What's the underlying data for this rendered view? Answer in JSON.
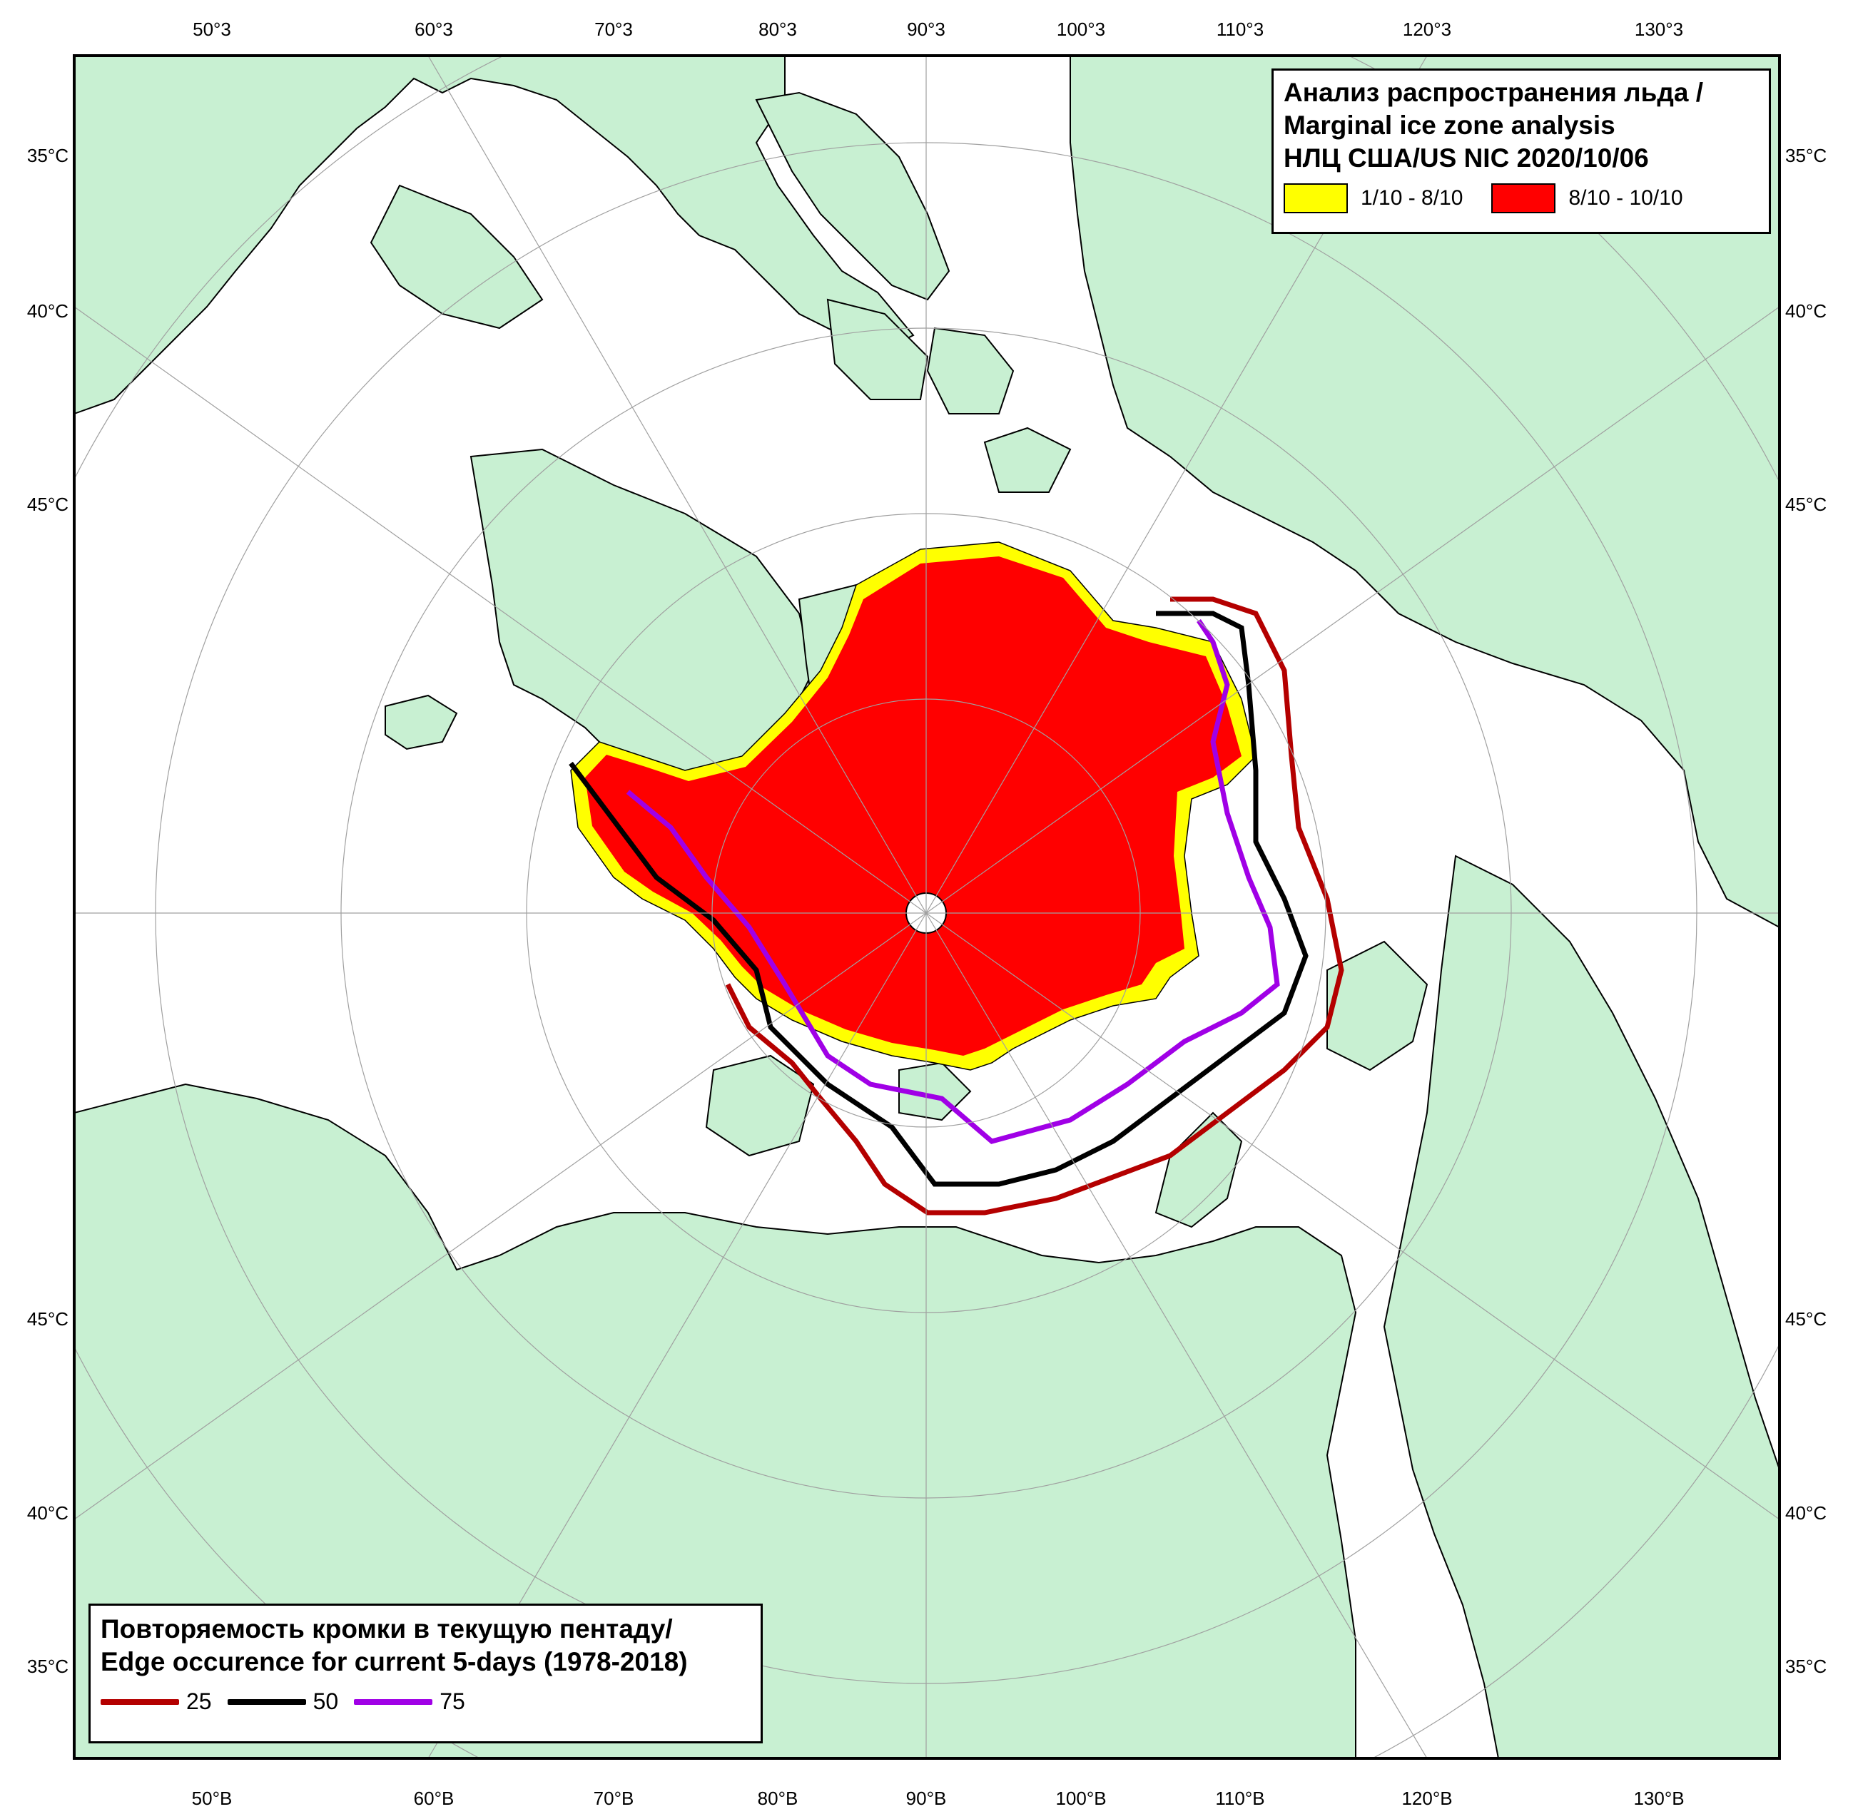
{
  "map": {
    "colors": {
      "land": "#c8f0d2",
      "ocean": "#ffffff",
      "ice_low": "#ffff00",
      "ice_high": "#ff0000",
      "edge_25": "#b40000",
      "edge_50": "#000000",
      "edge_75": "#a000e6",
      "graticule": "#a0a0a0",
      "frame": "#000000"
    },
    "top_ticks": [
      "50°3",
      "60°3",
      "70°3",
      "80°3",
      "90°3",
      "100°3",
      "110°3",
      "120°3",
      "130°3"
    ],
    "bottom_ticks": [
      "50°B",
      "60°B",
      "70°B",
      "80°B",
      "90°B",
      "100°B",
      "110°B",
      "120°B",
      "130°B"
    ],
    "left_ticks": [
      "35°C",
      "40°C",
      "45°C",
      "45°C",
      "40°C",
      "35°C"
    ],
    "right_ticks": [
      "35°C",
      "40°C",
      "45°C",
      "45°C",
      "40°C",
      "35°C"
    ]
  },
  "legend_top": {
    "title_line1": "Анализ распространения льда /",
    "title_line2": "Marginal ice zone analysis",
    "title_line3": "НЛЦ США/US NIC 2020/10/06",
    "item1_label": "1/10 - 8/10",
    "item2_label": "8/10 - 10/10"
  },
  "legend_bottom": {
    "title_line1": "Повторяемость кромки в текущую пентаду/",
    "title_line2": "Edge occurence for current 5-days (1978-2018)",
    "item1_label": "25",
    "item2_label": "50",
    "item3_label": "75"
  }
}
